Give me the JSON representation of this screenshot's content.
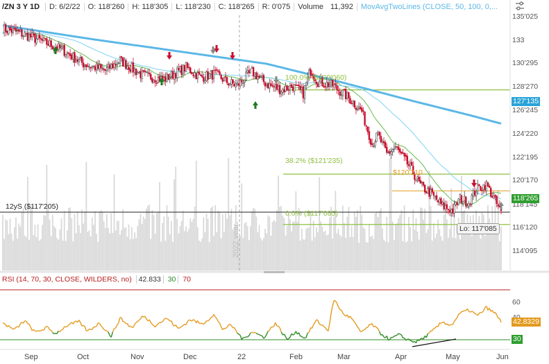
{
  "header": {
    "symbol": "/ZN 3 Y 1D",
    "date": "D: 6/2/22",
    "open": "O: 118'260",
    "high": "H: 118'305",
    "low": "L: 118'230",
    "close": "C: 118'265",
    "range": "R: 0'075",
    "volume_label": "Volume",
    "volume_value": "11,392",
    "study": "MovAvgTwoLines (CLOSE, 50, 100, 0,..."
  },
  "icons": {
    "settings": "settings-sliders-icon"
  },
  "price_axis": [
    "135'025",
    "133",
    "130'295",
    "128'270",
    "126'245",
    "124'220",
    "122'195",
    "120'170",
    "118'145",
    "116'120",
    "114'095"
  ],
  "price_tags": {
    "ma_long": "127'135",
    "last": "118'265",
    "rsi_value": "42.8329",
    "rsi_oversold": "30"
  },
  "fib_levels": [
    {
      "label": "100.0%  ($129'060)",
      "value": 129.19
    },
    {
      "label": "38.2%  ($121'235)",
      "value": 121.73
    },
    {
      "label": "0.0%  ($117'085)",
      "value": 117.27
    }
  ],
  "fib_mid_label": "$120'210",
  "hline_label": "12yS ($117'205)",
  "low_callout": "Lo: 117'085",
  "watermark": "2022 year",
  "rsi": {
    "name": "RSI (14, 70, 30, CLOSE, WILDERS, no)",
    "value": "42.833",
    "oversold": "30",
    "overbought": "70",
    "axis": [
      "60",
      "40"
    ]
  },
  "time_axis": [
    "Sep",
    "Oct",
    "Nov",
    "Dec",
    "22",
    "Feb",
    "Mar",
    "Apr",
    "May",
    "Jun"
  ],
  "colors": {
    "up": "#1e7a1e",
    "down": "#c8102e",
    "ma_fast": "#7dd3f5",
    "ma_slow": "#5ab7e6",
    "ma_short": "#63b947",
    "fib": "#8fbf3f",
    "rsi": "#e39a1e",
    "rsi_low": "#2e8b24",
    "volume": "#d9d9d9",
    "axis_tag_blue": "#2aa3d8",
    "axis_tag_green": "#2e9e2e"
  },
  "chart_data": {
    "type": "candlestick",
    "title": "/ZN 3 Y 1D",
    "ylim": [
      113.2,
      135.8
    ],
    "anchors": [
      [
        0,
        134.6
      ],
      [
        10,
        134.3
      ],
      [
        25,
        133.6
      ],
      [
        40,
        132.8
      ],
      [
        55,
        131.5
      ],
      [
        70,
        130.9
      ],
      [
        80,
        131.8
      ],
      [
        95,
        130.5
      ],
      [
        110,
        130.1
      ],
      [
        125,
        131.2
      ],
      [
        135,
        130.3
      ],
      [
        145,
        130.6
      ],
      [
        153,
        129.9
      ],
      [
        160,
        129.6
      ],
      [
        170,
        130.8
      ],
      [
        180,
        129.7
      ],
      [
        190,
        129.2
      ],
      [
        198,
        129.5
      ],
      [
        205,
        128.9
      ],
      [
        210,
        131.0
      ],
      [
        215,
        129.9
      ],
      [
        225,
        129.6
      ],
      [
        235,
        128.6
      ],
      [
        245,
        127.3
      ],
      [
        252,
        124.4
      ],
      [
        256,
        125.2
      ],
      [
        262,
        123.5
      ],
      [
        268,
        124.1
      ],
      [
        278,
        122.3
      ],
      [
        285,
        120.7
      ],
      [
        292,
        120.0
      ],
      [
        300,
        118.9
      ],
      [
        307,
        118.5
      ],
      [
        312,
        119.6
      ],
      [
        318,
        119.2
      ],
      [
        323,
        120.4
      ],
      [
        330,
        120.8
      ],
      [
        335,
        119.6
      ],
      [
        340,
        118.3
      ]
    ],
    "rsi_anchors": [
      [
        0,
        42
      ],
      [
        8,
        36
      ],
      [
        15,
        44
      ],
      [
        22,
        34
      ],
      [
        30,
        38
      ],
      [
        36,
        33
      ],
      [
        44,
        40
      ],
      [
        52,
        43
      ],
      [
        58,
        35
      ],
      [
        66,
        42
      ],
      [
        74,
        31
      ],
      [
        80,
        46
      ],
      [
        88,
        38
      ],
      [
        96,
        48
      ],
      [
        104,
        40
      ],
      [
        112,
        46
      ],
      [
        120,
        37
      ],
      [
        128,
        45
      ],
      [
        136,
        41
      ],
      [
        144,
        49
      ],
      [
        150,
        37
      ],
      [
        156,
        40
      ],
      [
        164,
        28
      ],
      [
        170,
        35
      ],
      [
        178,
        30
      ],
      [
        186,
        42
      ],
      [
        194,
        28
      ],
      [
        200,
        35
      ],
      [
        206,
        29
      ],
      [
        214,
        44
      ],
      [
        222,
        36
      ],
      [
        226,
        62
      ],
      [
        232,
        50
      ],
      [
        238,
        46
      ],
      [
        244,
        34
      ],
      [
        252,
        41
      ],
      [
        258,
        33
      ],
      [
        264,
        28
      ],
      [
        270,
        32
      ],
      [
        276,
        28
      ],
      [
        282,
        26
      ],
      [
        288,
        30
      ],
      [
        294,
        36
      ],
      [
        300,
        43
      ],
      [
        306,
        40
      ],
      [
        312,
        50
      ],
      [
        318,
        53
      ],
      [
        324,
        48
      ],
      [
        330,
        55
      ],
      [
        336,
        50
      ],
      [
        340,
        43
      ]
    ],
    "rsi_ylim": [
      22,
      70
    ]
  }
}
